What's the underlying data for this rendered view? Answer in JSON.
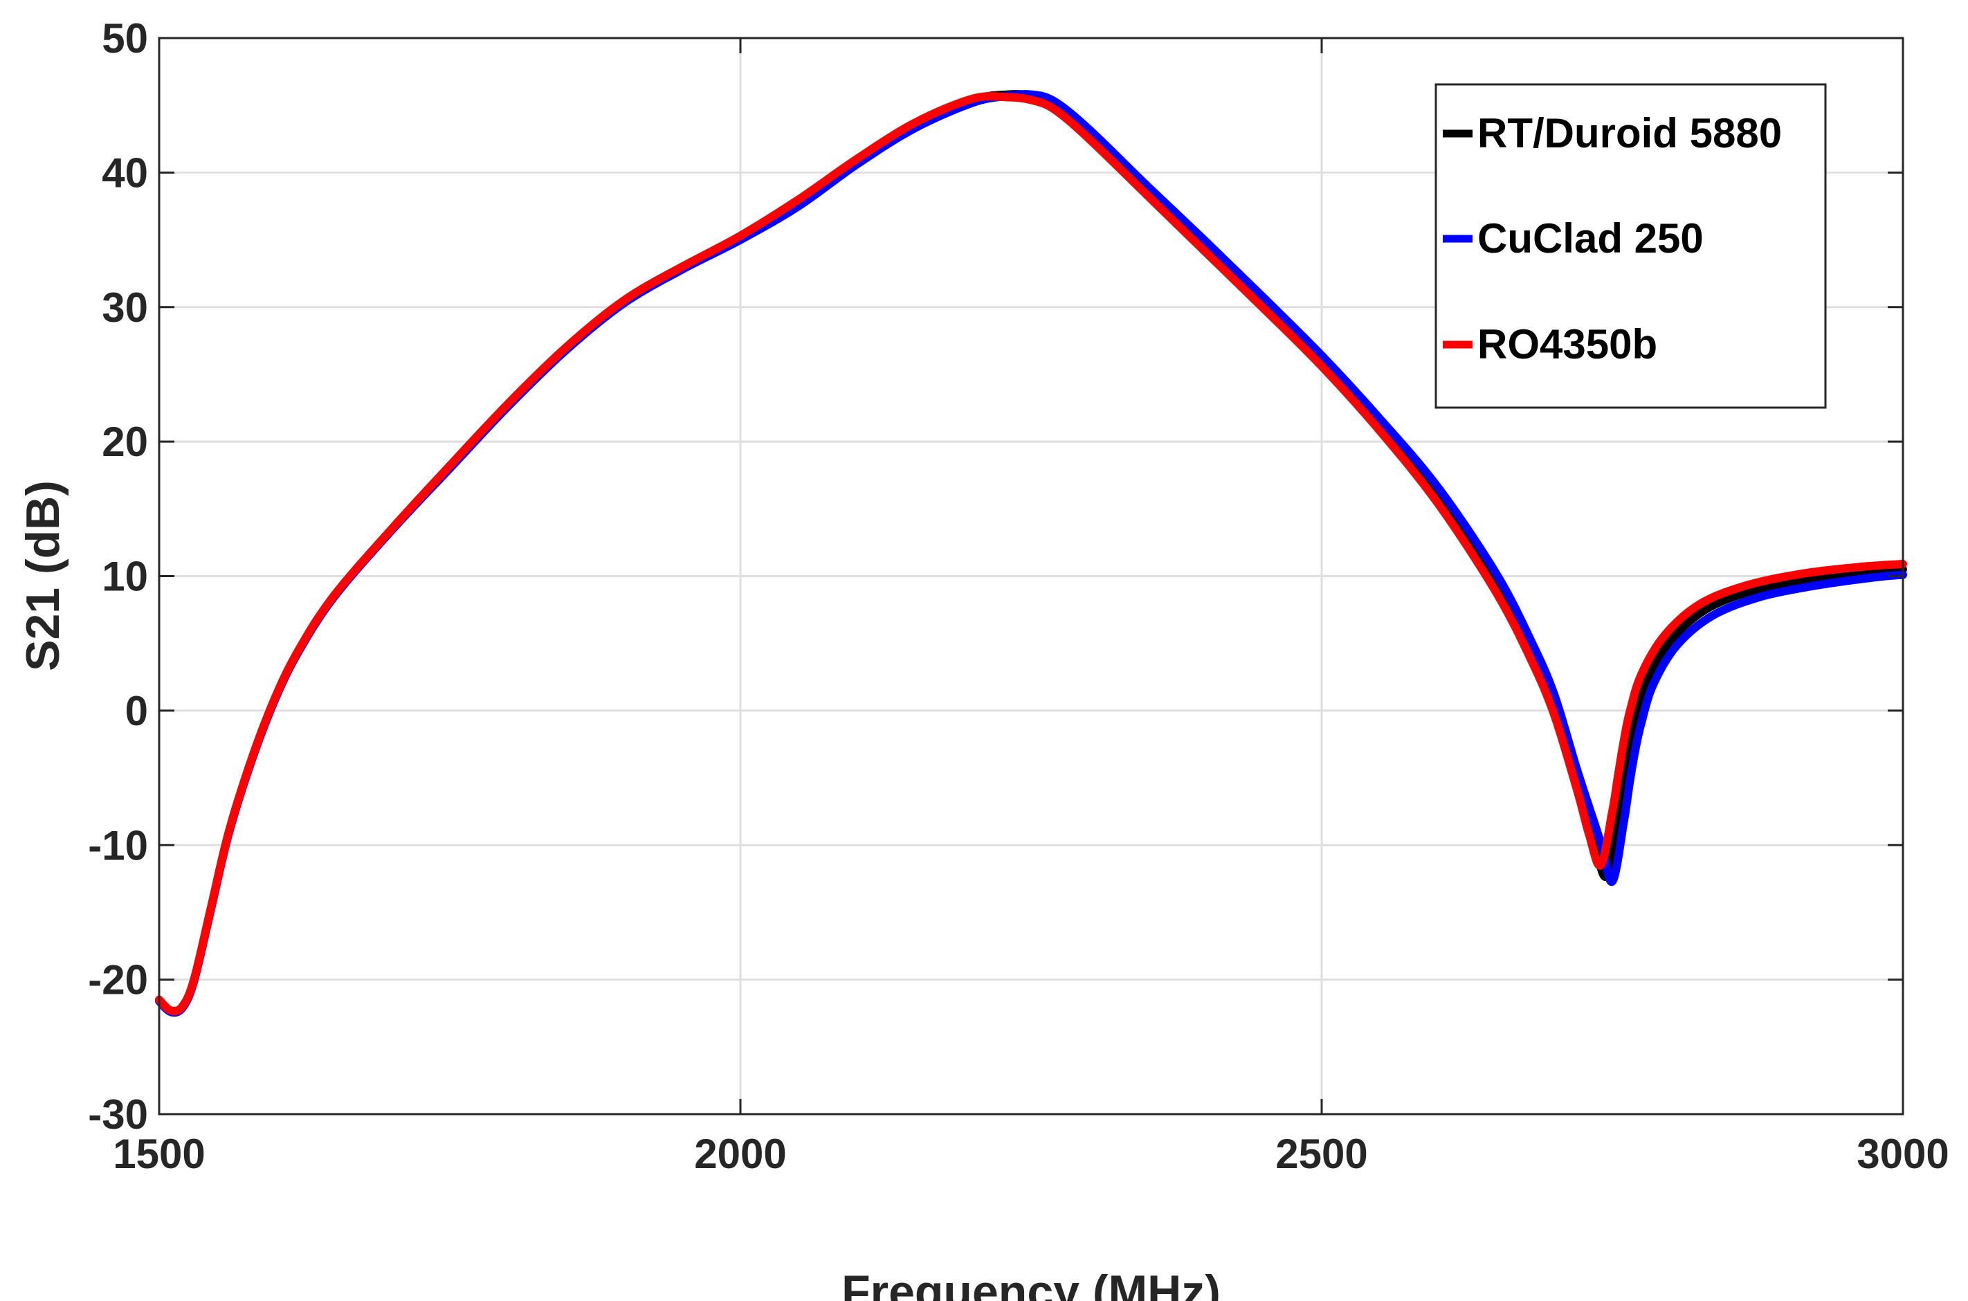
{
  "chart_data": {
    "type": "line",
    "title": "",
    "xlabel": "Frequency (MHz)",
    "ylabel": "S21 (dB)",
    "xlim": [
      1500,
      3000
    ],
    "ylim": [
      -30,
      50
    ],
    "xticks": [
      "1500",
      "2000",
      "2500",
      "3000"
    ],
    "yticks": [
      "50",
      "40",
      "30",
      "20",
      "10",
      "0",
      "-10",
      "-20",
      "-30"
    ],
    "xtick_values": [
      1500,
      2000,
      2500,
      3000
    ],
    "ytick_values": [
      50,
      40,
      30,
      20,
      10,
      0,
      -10,
      -20,
      -30
    ],
    "grid": true,
    "legend_position": "top-right",
    "series": [
      {
        "name": "RT/Duroid 5880",
        "color": "#000000",
        "x": [
          1500,
          1510,
          1520,
          1530,
          1545,
          1560,
          1580,
          1600,
          1620,
          1650,
          1700,
          1750,
          1800,
          1850,
          1900,
          1950,
          2000,
          2050,
          2100,
          2150,
          2200,
          2230,
          2250,
          2270,
          2300,
          2350,
          2400,
          2450,
          2500,
          2550,
          2600,
          2650,
          2680,
          2700,
          2720,
          2735,
          2745,
          2755,
          2760,
          2765,
          2770,
          2780,
          2800,
          2830,
          2870,
          2920,
          2970,
          3000
        ],
        "y": [
          -21.5,
          -22.3,
          -22.0,
          -20.0,
          -14.5,
          -9.0,
          -3.5,
          1.0,
          4.5,
          8.5,
          13.5,
          18.2,
          22.8,
          27.0,
          30.5,
          33.0,
          35.2,
          37.8,
          40.8,
          43.5,
          45.4,
          45.8,
          45.7,
          45.0,
          42.8,
          38.7,
          34.5,
          30.3,
          26.0,
          21.2,
          16.0,
          9.5,
          4.5,
          0.5,
          -5.0,
          -10.0,
          -12.3,
          -8.0,
          -5.0,
          -2.5,
          -0.5,
          2.3,
          5.2,
          7.5,
          8.9,
          9.8,
          10.3,
          10.5
        ]
      },
      {
        "name": "CuClad 250",
        "color": "#0000ff",
        "x": [
          1500,
          1510,
          1520,
          1530,
          1545,
          1560,
          1580,
          1600,
          1620,
          1650,
          1700,
          1750,
          1800,
          1850,
          1900,
          1950,
          2000,
          2050,
          2100,
          2150,
          2200,
          2230,
          2250,
          2270,
          2300,
          2350,
          2400,
          2450,
          2500,
          2550,
          2600,
          2650,
          2680,
          2700,
          2720,
          2740,
          2750,
          2760,
          2765,
          2770,
          2775,
          2785,
          2805,
          2835,
          2875,
          2925,
          2975,
          3000
        ],
        "y": [
          -21.6,
          -22.4,
          -22.1,
          -20.1,
          -14.6,
          -9.1,
          -3.6,
          0.9,
          4.4,
          8.4,
          13.4,
          18.0,
          22.6,
          26.8,
          30.3,
          32.8,
          35.0,
          37.5,
          40.6,
          43.3,
          45.2,
          45.7,
          45.8,
          45.3,
          43.2,
          39.0,
          34.9,
          30.7,
          26.4,
          21.7,
          16.6,
          10.2,
          5.2,
          1.2,
          -4.5,
          -9.8,
          -12.7,
          -8.2,
          -5.3,
          -2.8,
          -0.9,
          1.9,
          4.8,
          7.0,
          8.4,
          9.3,
          9.9,
          10.1
        ]
      },
      {
        "name": "RO4350b",
        "color": "#ff0000",
        "x": [
          1500,
          1510,
          1520,
          1530,
          1545,
          1560,
          1580,
          1600,
          1620,
          1650,
          1700,
          1750,
          1800,
          1850,
          1900,
          1950,
          2000,
          2050,
          2100,
          2150,
          2200,
          2230,
          2250,
          2270,
          2300,
          2350,
          2400,
          2450,
          2500,
          2550,
          2600,
          2650,
          2680,
          2700,
          2720,
          2730,
          2740,
          2750,
          2755,
          2760,
          2765,
          2775,
          2795,
          2825,
          2865,
          2915,
          2965,
          3000
        ],
        "y": [
          -21.5,
          -22.3,
          -22.0,
          -20.0,
          -14.5,
          -9.0,
          -3.5,
          1.0,
          4.5,
          8.5,
          13.5,
          18.2,
          22.8,
          27.0,
          30.5,
          33.0,
          35.3,
          38.0,
          41.0,
          43.7,
          45.5,
          45.6,
          45.4,
          44.7,
          42.5,
          38.3,
          34.1,
          29.9,
          25.6,
          20.8,
          15.4,
          8.8,
          3.8,
          -0.3,
          -6.0,
          -9.2,
          -11.5,
          -7.5,
          -4.8,
          -2.2,
          -0.1,
          2.7,
          5.6,
          7.9,
          9.3,
          10.2,
          10.7,
          10.9
        ]
      }
    ]
  }
}
